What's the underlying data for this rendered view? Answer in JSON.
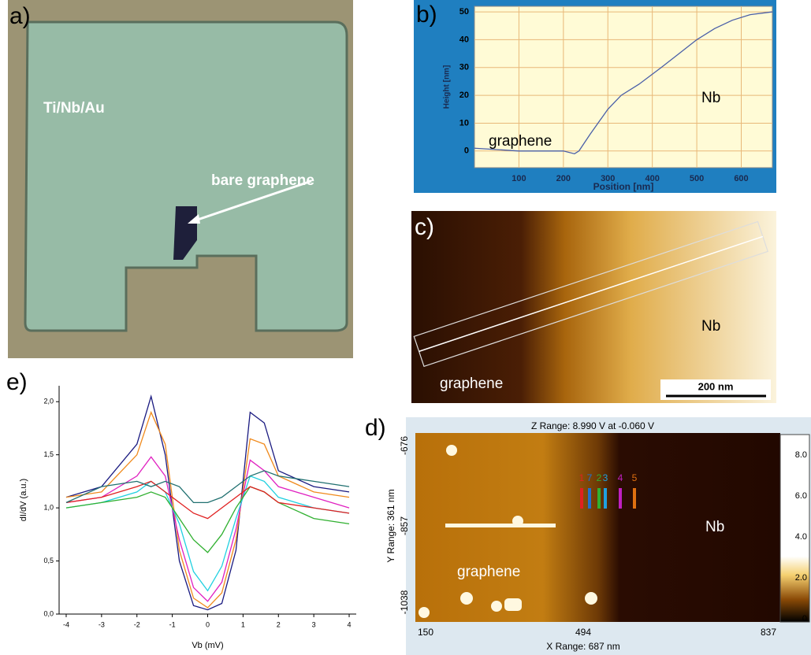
{
  "panels": {
    "a": {
      "label": "a)",
      "texts": [
        "Ti/Nb/Au",
        "bare graphene"
      ]
    },
    "c": {
      "label": "c)",
      "texts": [
        "Nb",
        "graphene",
        "200 nm"
      ]
    },
    "d": {
      "label": "d)",
      "z_range": "Z Range:  8.990 V  at -0.060 V",
      "y_range": "Y Range:  361 nm",
      "x_range": "X Range:  687 nm",
      "x_ticks": [
        "150",
        "494",
        "837"
      ],
      "y_ticks": [
        "-676",
        "-857",
        "-1038"
      ],
      "colorbar_ticks": [
        "8.0",
        "6.0",
        "4.0",
        "2.0",
        "0"
      ],
      "markers": [
        "1",
        "7",
        "2",
        "3",
        "4",
        "5"
      ],
      "texts": [
        "Nb",
        "graphene"
      ]
    },
    "e": {
      "label": "e)"
    }
  },
  "chart_data": [
    {
      "type": "line",
      "x_label": "Position [nm]",
      "y_label": "Height [nm]",
      "annotations": [
        "graphene",
        "Nb"
      ],
      "x": [
        0,
        100,
        200,
        225,
        235,
        260,
        300,
        330,
        370,
        420,
        460,
        500,
        540,
        580,
        620,
        670
      ],
      "series": [
        {
          "color": "#4a5fa8",
          "values": [
            1,
            0,
            0,
            -1,
            0,
            6,
            15,
            20,
            24,
            30,
            35,
            40,
            44,
            47,
            49,
            50
          ]
        }
      ],
      "xlim": [
        0,
        670
      ],
      "xticks": [
        100,
        200,
        300,
        400,
        500,
        600
      ],
      "ylim": [
        -6,
        52
      ],
      "yticks": [
        0,
        10,
        20,
        30,
        40,
        50
      ],
      "grid": true
    },
    {
      "type": "line",
      "x_label": "Vb (mV)",
      "y_label": "dI/dV (a.u.)",
      "x": [
        -4,
        -3,
        -2,
        -1.6,
        -1.2,
        -0.8,
        -0.4,
        0,
        0.4,
        0.8,
        1.2,
        1.6,
        2,
        3,
        4
      ],
      "series": [
        {
          "color": "#1a1a80",
          "values": [
            1.1,
            1.2,
            1.6,
            2.05,
            1.5,
            0.5,
            0.08,
            0.04,
            0.1,
            0.6,
            1.9,
            1.8,
            1.35,
            1.2,
            1.15
          ]
        },
        {
          "color": "#f08a1c",
          "values": [
            1.1,
            1.15,
            1.5,
            1.9,
            1.6,
            0.6,
            0.15,
            0.06,
            0.2,
            0.7,
            1.65,
            1.6,
            1.3,
            1.15,
            1.1
          ]
        },
        {
          "color": "#e020c0",
          "values": [
            1.05,
            1.1,
            1.3,
            1.48,
            1.3,
            0.7,
            0.25,
            0.12,
            0.3,
            0.8,
            1.45,
            1.35,
            1.2,
            1.1,
            1.0
          ]
        },
        {
          "color": "#20d0e0",
          "values": [
            1.0,
            1.05,
            1.15,
            1.25,
            1.15,
            0.85,
            0.4,
            0.22,
            0.45,
            0.9,
            1.3,
            1.25,
            1.1,
            1.0,
            0.95
          ]
        },
        {
          "color": "#30b030",
          "values": [
            1.0,
            1.05,
            1.1,
            1.15,
            1.1,
            0.9,
            0.7,
            0.58,
            0.75,
            1.0,
            1.2,
            1.15,
            1.05,
            0.9,
            0.85
          ]
        },
        {
          "color": "#e02020",
          "values": [
            1.05,
            1.1,
            1.2,
            1.25,
            1.15,
            1.05,
            0.95,
            0.9,
            1.0,
            1.1,
            1.2,
            1.15,
            1.05,
            1.0,
            0.95
          ]
        },
        {
          "color": "#207070",
          "values": [
            1.05,
            1.2,
            1.25,
            1.2,
            1.25,
            1.2,
            1.05,
            1.05,
            1.1,
            1.2,
            1.3,
            1.35,
            1.3,
            1.25,
            1.2
          ]
        }
      ],
      "xlim": [
        -4.2,
        4.2
      ],
      "xticks": [
        -4,
        -3,
        -2,
        -1,
        0,
        1,
        2,
        3,
        4
      ],
      "ylim": [
        0,
        2.15
      ],
      "yticks": [
        {
          "value": 0,
          "label": "0,0"
        },
        {
          "value": 0.5,
          "label": "0,5"
        },
        {
          "value": 1,
          "label": "1,0"
        },
        {
          "value": 1.5,
          "label": "1,5"
        },
        {
          "value": 2,
          "label": "2,0"
        }
      ],
      "grid": false
    }
  ]
}
